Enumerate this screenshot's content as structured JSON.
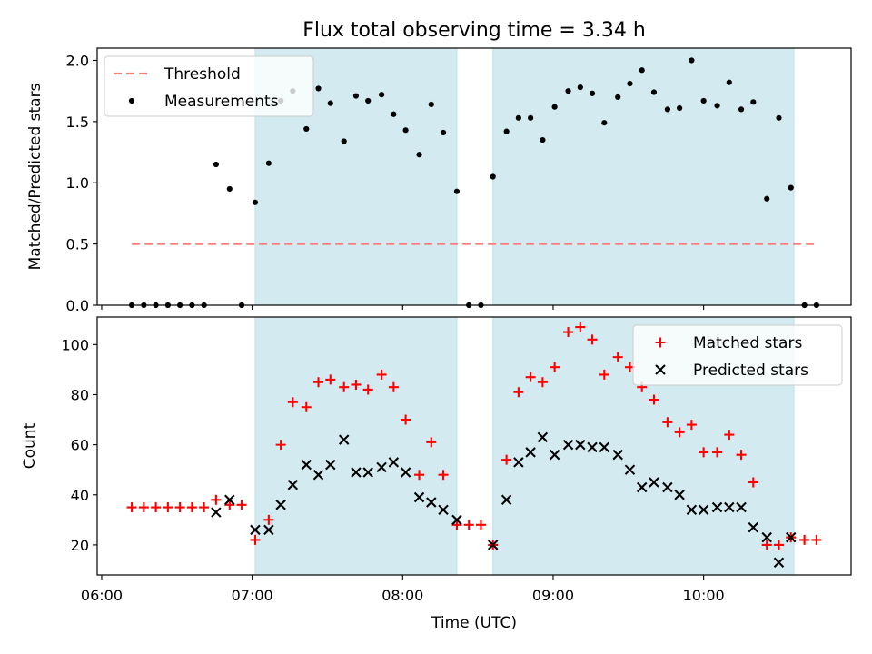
{
  "chart_data": {
    "type": "scatter",
    "title": "Flux total observing time = 3.34 h",
    "xlabel": "Time (UTC)",
    "x_ticks": [
      "06:00",
      "07:00",
      "08:00",
      "09:00",
      "10:00"
    ],
    "x_tick_hours": [
      6,
      7,
      8,
      9,
      10
    ],
    "xlim_hours": [
      5.97,
      10.98
    ],
    "observing_windows_hours": [
      [
        7.02,
        8.36
      ],
      [
        8.6,
        10.6
      ]
    ],
    "window_color": "#d3eaf1",
    "panels": [
      {
        "ylabel": "Matched/Predicted stars",
        "ylim": [
          0,
          2.1
        ],
        "y_ticks": [
          0.0,
          0.5,
          1.0,
          1.5,
          2.0
        ],
        "y_tick_labels": [
          "0.0",
          "0.5",
          "1.0",
          "1.5",
          "2.0"
        ],
        "legend": {
          "position": "upper-left",
          "entries": [
            "Threshold",
            "Measurements"
          ]
        },
        "threshold": {
          "name": "Threshold",
          "value": 0.5,
          "x_range_hours": [
            6.2,
            10.76
          ],
          "color": "#ff7f7f"
        },
        "series": [
          {
            "name": "Measurements",
            "marker": "dot",
            "color": "#000000",
            "x_hours": [
              6.2,
              6.28,
              6.36,
              6.44,
              6.52,
              6.6,
              6.68,
              6.76,
              6.85,
              6.93,
              7.02,
              7.11,
              7.19,
              7.27,
              7.36,
              7.44,
              7.52,
              7.61,
              7.69,
              7.77,
              7.86,
              7.94,
              8.02,
              8.11,
              8.19,
              8.27,
              8.36,
              8.44,
              8.52,
              8.6,
              8.69,
              8.77,
              8.85,
              8.93,
              9.01,
              9.1,
              9.18,
              9.26,
              9.34,
              9.43,
              9.51,
              9.59,
              9.67,
              9.76,
              9.84,
              9.92,
              10.0,
              10.09,
              10.17,
              10.25,
              10.33,
              10.42,
              10.5,
              10.58,
              10.67,
              10.75
            ],
            "values": [
              0,
              0,
              0,
              0,
              0,
              0,
              0,
              1.15,
              0.95,
              0,
              0.84,
              1.16,
              1.67,
              1.75,
              1.44,
              1.77,
              1.65,
              1.34,
              1.71,
              1.67,
              1.72,
              1.56,
              1.43,
              1.23,
              1.64,
              1.41,
              0.93,
              0,
              0,
              1.05,
              1.42,
              1.53,
              1.53,
              1.35,
              1.62,
              1.75,
              1.78,
              1.73,
              1.49,
              1.7,
              1.81,
              1.92,
              1.74,
              1.6,
              1.61,
              2.0,
              1.67,
              1.63,
              1.82,
              1.6,
              1.66,
              0.87,
              1.53,
              0.96,
              0,
              0
            ]
          }
        ]
      },
      {
        "ylabel": "Count",
        "ylim": [
          8,
          111
        ],
        "y_ticks": [
          20,
          40,
          60,
          80,
          100
        ],
        "y_tick_labels": [
          "20",
          "40",
          "60",
          "80",
          "100"
        ],
        "legend": {
          "position": "upper-right",
          "entries": [
            "Matched stars",
            "Predicted stars"
          ]
        },
        "series": [
          {
            "name": "Matched stars",
            "marker": "plus",
            "color": "#ff0000",
            "x_hours": [
              6.2,
              6.28,
              6.36,
              6.44,
              6.52,
              6.6,
              6.68,
              6.76,
              6.85,
              6.93,
              7.02,
              7.11,
              7.19,
              7.27,
              7.36,
              7.44,
              7.52,
              7.61,
              7.69,
              7.77,
              7.86,
              7.94,
              8.02,
              8.11,
              8.19,
              8.27,
              8.36,
              8.44,
              8.52,
              8.6,
              8.69,
              8.77,
              8.85,
              8.93,
              9.01,
              9.1,
              9.18,
              9.26,
              9.34,
              9.43,
              9.51,
              9.59,
              9.67,
              9.76,
              9.84,
              9.92,
              10.0,
              10.09,
              10.17,
              10.25,
              10.33,
              10.42,
              10.5,
              10.58,
              10.67,
              10.75
            ],
            "values": [
              35,
              35,
              35,
              35,
              35,
              35,
              35,
              38,
              36,
              36,
              22,
              30,
              60,
              77,
              75,
              85,
              86,
              83,
              84,
              82,
              88,
              83,
              70,
              48,
              61,
              48,
              28,
              28,
              28,
              20,
              54,
              81,
              87,
              85,
              91,
              105,
              107,
              102,
              88,
              95,
              91,
              83,
              78,
              69,
              65,
              68,
              57,
              57,
              64,
              56,
              45,
              20,
              20,
              23,
              22,
              22
            ]
          },
          {
            "name": "Predicted stars",
            "marker": "x",
            "color": "#000000",
            "x_hours": [
              6.76,
              6.85,
              7.02,
              7.11,
              7.19,
              7.27,
              7.36,
              7.44,
              7.52,
              7.61,
              7.69,
              7.77,
              7.86,
              7.94,
              8.02,
              8.11,
              8.19,
              8.27,
              8.36,
              8.6,
              8.69,
              8.77,
              8.85,
              8.93,
              9.01,
              9.1,
              9.18,
              9.26,
              9.34,
              9.43,
              9.51,
              9.59,
              9.67,
              9.76,
              9.84,
              9.92,
              10.0,
              10.09,
              10.17,
              10.25,
              10.33,
              10.42,
              10.5,
              10.58
            ],
            "values": [
              33,
              38,
              26,
              26,
              36,
              44,
              52,
              48,
              52,
              62,
              49,
              49,
              51,
              53,
              49,
              39,
              37,
              34,
              30,
              20,
              38,
              53,
              57,
              63,
              56,
              60,
              60,
              59,
              59,
              56,
              50,
              43,
              45,
              43,
              40,
              34,
              34,
              35,
              35,
              35,
              27,
              23,
              13,
              23
            ]
          }
        ]
      }
    ]
  }
}
